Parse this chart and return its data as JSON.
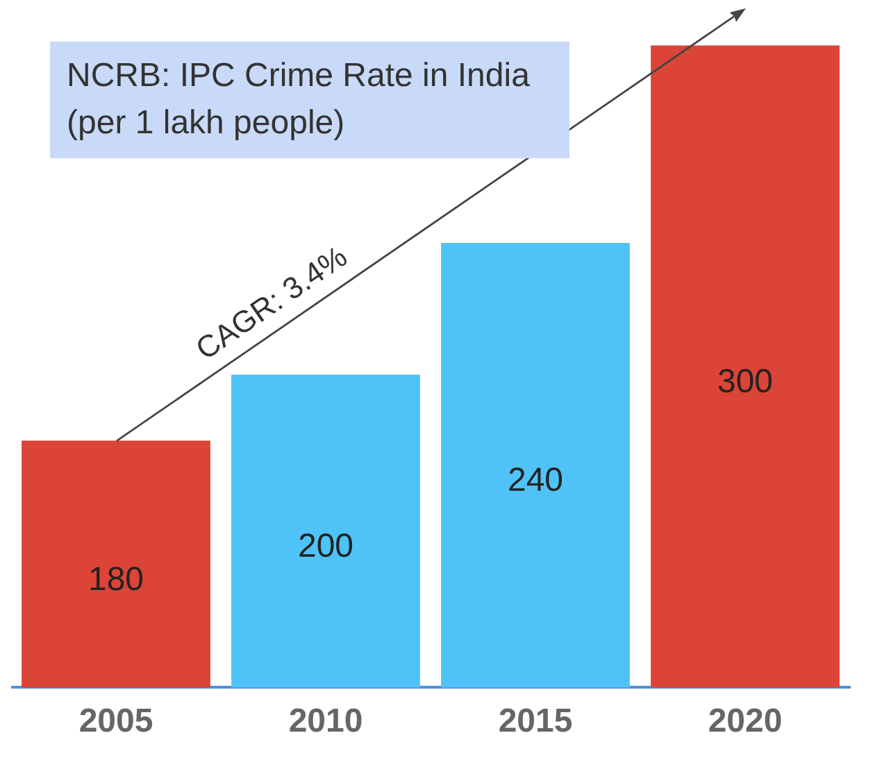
{
  "chart_data": {
    "type": "bar",
    "title": "NCRB: IPC Crime Rate in India (per 1 lakh people)",
    "categories": [
      "2005",
      "2010",
      "2015",
      "2020"
    ],
    "values": [
      180,
      200,
      240,
      300
    ],
    "colors": [
      "#db4437",
      "#4fc3f7",
      "#4fc3f7",
      "#db4437"
    ],
    "ylim": [
      105,
      302
    ],
    "tick_labels": "x",
    "grid": false,
    "legend": false,
    "data_labels": true,
    "annotations": [
      "CAGR: 3.4%"
    ]
  }
}
